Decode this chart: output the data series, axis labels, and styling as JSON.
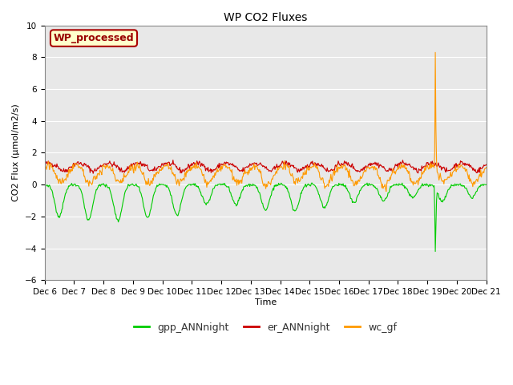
{
  "title": "WP CO2 Fluxes",
  "ylabel": "CO2 Flux (μmol/m2/s)",
  "xlabel": "Time",
  "ylim": [
    -6,
    10
  ],
  "yticks": [
    -6,
    -4,
    -2,
    0,
    2,
    4,
    6,
    8,
    10
  ],
  "plot_bg_color": "#e8e8e8",
  "fig_bg_color": "#ffffff",
  "legend_label": "WP_processed",
  "legend_box_facecolor": "#ffffcc",
  "legend_box_edgecolor": "#aa0000",
  "legend_text_color": "#990000",
  "color_gpp": "#00cc00",
  "color_er": "#cc0000",
  "color_wc": "#ff9900",
  "n_days": 15,
  "start_day": 6,
  "ppd": 48,
  "seed": 42,
  "title_fontsize": 10,
  "axis_fontsize": 8,
  "tick_fontsize": 7.5,
  "legend_fontsize": 9
}
